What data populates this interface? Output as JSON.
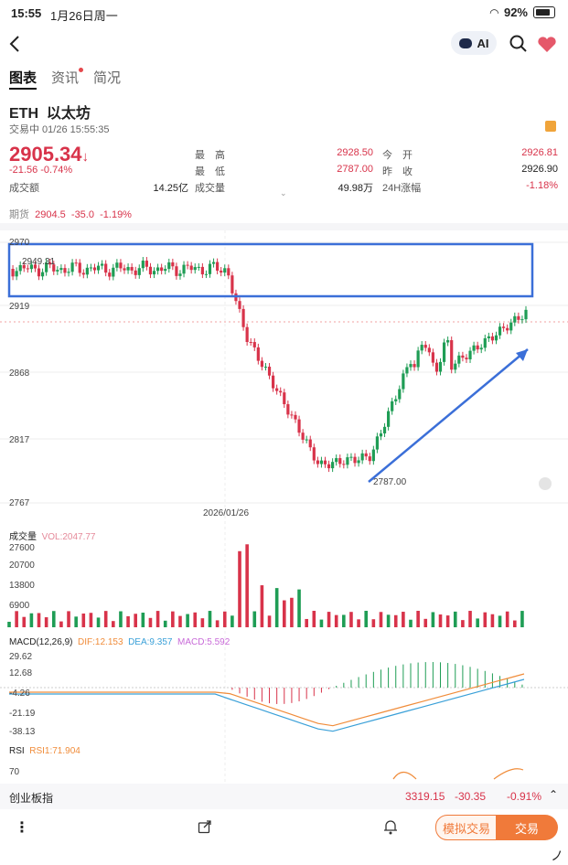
{
  "status": {
    "time": "15:55",
    "date": "1月26日周一",
    "battery": "92%"
  },
  "nav": {
    "ai_label": "AI"
  },
  "tabs": [
    {
      "label": "图表"
    },
    {
      "label": "资讯"
    },
    {
      "label": "简况"
    }
  ],
  "quote": {
    "symbol": "ETH",
    "name": "以太坊",
    "state": "交易中 01/26 15:55:35",
    "price": "2905.34",
    "price_arrow": "↓",
    "change": "-21.56  -0.74%",
    "high_label": "最　高",
    "high": "2928.50",
    "open_label": "今　开",
    "open": "2926.81",
    "low_label": "最　低",
    "low": "2787.00",
    "prev_label": "昨　收",
    "prev": "2926.90",
    "turnover_label": "成交额",
    "turnover": "14.25亿",
    "volume_label": "成交量",
    "volume": "49.98万",
    "change24_label": "24H涨幅",
    "change24": "-1.18%",
    "futures_label": "期货",
    "futures_price": "2904.5",
    "futures_chg": "-35.0",
    "futures_pct": "-1.19%"
  },
  "chart": {
    "y_ticks": [
      "2970",
      "2919",
      "2868",
      "2817",
      "2767"
    ],
    "date_label": "2026/01/26",
    "high_marker": "2949.31",
    "low_marker": "2787.00",
    "volume_title": "成交量",
    "volume_value": "VOL:2047.77",
    "volume_ticks": [
      "27600",
      "20700",
      "13800",
      "6900"
    ],
    "macd_title": "MACD(12,26,9)",
    "macd_dif": "DIF:12.153",
    "macd_dea": "DEA:9.357",
    "macd_val": "MACD:5.592",
    "macd_ticks": [
      "29.62",
      "12.68",
      "-4.26",
      "-21.19",
      "-38.13"
    ],
    "rsi_title": "RSI",
    "rsi_value": "RSI1:71.904",
    "rsi_tick": "70",
    "colors": {
      "up": "#1f9d55",
      "down": "#d8334a",
      "box": "#3b6fd8",
      "dif": "#f08c3a",
      "dea": "#3aa0d8",
      "macd": "#c86ad8"
    }
  },
  "index_bar": {
    "name": "创业板指",
    "value": "3319.15",
    "change": "-30.35",
    "pct": "-0.91%"
  },
  "actions": {
    "simulate": "模拟交易",
    "trade": "交易"
  }
}
